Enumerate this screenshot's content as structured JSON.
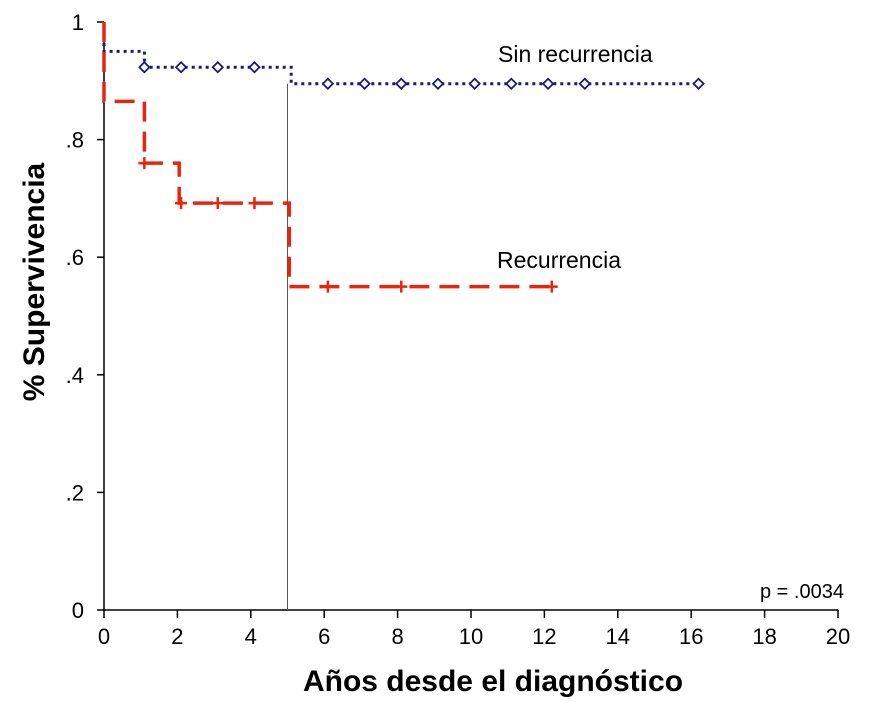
{
  "chart_data": {
    "type": "line",
    "subtype": "kaplan-meier step",
    "xlabel": "Años desde el diagnóstico",
    "ylabel": "% Supervivencia",
    "xlim": [
      0,
      20
    ],
    "ylim": [
      0,
      1
    ],
    "x_ticks": [
      0,
      2,
      4,
      6,
      8,
      10,
      12,
      14,
      16,
      18,
      20
    ],
    "y_ticks": [
      {
        "value": 0,
        "label": "0"
      },
      {
        "value": 0.2,
        "label": ".2"
      },
      {
        "value": 0.4,
        "label": ".4"
      },
      {
        "value": 0.6,
        "label": ".6"
      },
      {
        "value": 0.8,
        "label": ".8"
      },
      {
        "value": 1,
        "label": "1"
      }
    ],
    "grid": false,
    "reference_line_x": 5,
    "annotation": "p = .0034",
    "series": [
      {
        "name": "Sin recurrencia",
        "color": "#1a1a7a",
        "style": "dotted",
        "steps": [
          [
            0,
            1.0
          ],
          [
            0,
            0.95
          ],
          [
            1.1,
            0.95
          ],
          [
            1.1,
            0.923
          ],
          [
            5.1,
            0.923
          ],
          [
            5.1,
            0.895
          ],
          [
            16.3,
            0.895
          ]
        ],
        "censored": [
          [
            1.1,
            0.923
          ],
          [
            2.1,
            0.923
          ],
          [
            3.1,
            0.923
          ],
          [
            4.1,
            0.923
          ],
          [
            6.1,
            0.895
          ],
          [
            7.1,
            0.895
          ],
          [
            8.1,
            0.895
          ],
          [
            9.1,
            0.895
          ],
          [
            10.1,
            0.895
          ],
          [
            11.1,
            0.895
          ],
          [
            12.1,
            0.895
          ],
          [
            13.1,
            0.895
          ],
          [
            16.2,
            0.895
          ]
        ]
      },
      {
        "name": "Recurrencia",
        "color": "#e8250e",
        "style": "dashed",
        "steps": [
          [
            0,
            1.0
          ],
          [
            0,
            0.865
          ],
          [
            1.1,
            0.865
          ],
          [
            1.1,
            0.76
          ],
          [
            2.05,
            0.76
          ],
          [
            2.05,
            0.692
          ],
          [
            5.05,
            0.692
          ],
          [
            5.05,
            0.55
          ],
          [
            12.3,
            0.55
          ]
        ],
        "censored": [
          [
            1.1,
            0.76
          ],
          [
            2.1,
            0.692
          ],
          [
            3.1,
            0.692
          ],
          [
            4.1,
            0.692
          ],
          [
            6.1,
            0.55
          ],
          [
            8.1,
            0.55
          ],
          [
            12.2,
            0.55
          ]
        ]
      }
    ]
  }
}
